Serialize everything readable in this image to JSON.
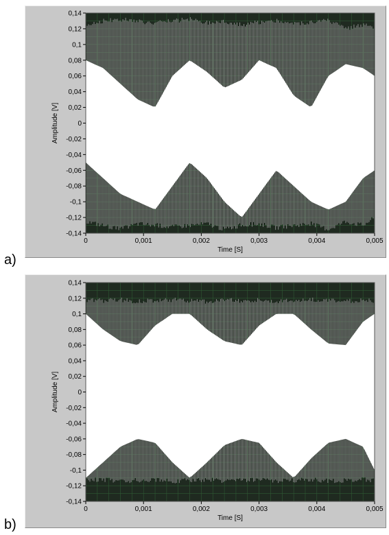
{
  "figure_labels": [
    "a)",
    "b)"
  ],
  "colors": {
    "plot_background": "#1f2a20",
    "grid": "#2f5a34",
    "signal": "#ffffff",
    "hatch": "#8a8a8a",
    "panel": "#c8c8c8"
  },
  "chart_data": [
    {
      "type": "area",
      "id": "a",
      "xlabel": "Time",
      "xunit": "[S]",
      "ylabel": "Amplitude",
      "yunit": "[V]",
      "xlim": [
        0,
        0.005
      ],
      "ylim": [
        -0.14,
        0.14
      ],
      "grid": true,
      "x_ticks": [
        0,
        0.001,
        0.002,
        0.003,
        0.004,
        0.005
      ],
      "x_tick_labels": [
        "0",
        "0,001",
        "0,002",
        "0,003",
        "0,004",
        "0,005"
      ],
      "y_ticks": [
        0.14,
        0.12,
        0.1,
        0.08,
        0.06,
        0.04,
        0.02,
        0,
        -0.02,
        -0.04,
        -0.06,
        -0.08,
        -0.1,
        -0.12,
        -0.14
      ],
      "y_tick_labels": [
        "0,14",
        "0,12",
        "0,1",
        "0,08",
        "0,06",
        "0,04",
        "0,02",
        "0",
        "-0,02",
        "-0,04",
        "-0,06",
        "-0,08",
        "-0,1",
        "-0,12",
        "-0,14"
      ],
      "envelope": {
        "x": [
          0,
          0.0003,
          0.0006,
          0.0009,
          0.0012,
          0.0015,
          0.0018,
          0.0021,
          0.0024,
          0.0027,
          0.003,
          0.0033,
          0.0036,
          0.0039,
          0.0042,
          0.0045,
          0.0048,
          0.005
        ],
        "outer_max": [
          0.125,
          0.13,
          0.132,
          0.13,
          0.127,
          0.13,
          0.132,
          0.128,
          0.13,
          0.125,
          0.128,
          0.13,
          0.126,
          0.128,
          0.13,
          0.12,
          0.125,
          0.12
        ],
        "outer_min": [
          -0.125,
          -0.13,
          -0.135,
          -0.128,
          -0.13,
          -0.132,
          -0.13,
          -0.128,
          -0.135,
          -0.13,
          -0.128,
          -0.133,
          -0.13,
          -0.128,
          -0.135,
          -0.125,
          -0.13,
          -0.12
        ],
        "inner_max": [
          0.08,
          0.07,
          0.05,
          0.03,
          0.02,
          0.06,
          0.08,
          0.065,
          0.045,
          0.055,
          0.08,
          0.07,
          0.035,
          0.02,
          0.06,
          0.075,
          0.07,
          0.06
        ],
        "inner_min": [
          -0.05,
          -0.07,
          -0.09,
          -0.1,
          -0.11,
          -0.08,
          -0.05,
          -0.07,
          -0.1,
          -0.12,
          -0.09,
          -0.06,
          -0.08,
          -0.1,
          -0.11,
          -0.1,
          -0.07,
          -0.06
        ]
      }
    },
    {
      "type": "area",
      "id": "b",
      "xlabel": "Time",
      "xunit": "[S]",
      "ylabel": "Amplitude",
      "yunit": "[V]",
      "xlim": [
        0,
        0.005
      ],
      "ylim": [
        -0.14,
        0.14
      ],
      "grid": true,
      "x_ticks": [
        0,
        0.001,
        0.002,
        0.003,
        0.004,
        0.005
      ],
      "x_tick_labels": [
        "0",
        "0,001",
        "0,002",
        "0,003",
        "0,004",
        "0,005"
      ],
      "y_ticks": [
        0.14,
        0.12,
        0.1,
        0.08,
        0.06,
        0.04,
        0.02,
        0,
        -0.02,
        -0.04,
        -0.06,
        -0.08,
        -0.1,
        -0.12,
        -0.14
      ],
      "y_tick_labels": [
        "0,14",
        "0,12",
        "0,1",
        "0,08",
        "0,06",
        "0,04",
        "0,02",
        "0",
        "-0,02",
        "-0,04",
        "-0,06",
        "-0,08",
        "-0,1",
        "-0,12",
        "-0,14"
      ],
      "envelope": {
        "x": [
          0,
          0.0003,
          0.0006,
          0.0009,
          0.0012,
          0.0015,
          0.0018,
          0.0021,
          0.0024,
          0.0027,
          0.003,
          0.0033,
          0.0036,
          0.0039,
          0.0042,
          0.0045,
          0.0048,
          0.005
        ],
        "outer_max": [
          0.118,
          0.117,
          0.118,
          0.116,
          0.117,
          0.118,
          0.117,
          0.116,
          0.118,
          0.117,
          0.118,
          0.116,
          0.117,
          0.118,
          0.117,
          0.116,
          0.118,
          0.117
        ],
        "outer_min": [
          -0.113,
          -0.112,
          -0.114,
          -0.113,
          -0.112,
          -0.114,
          -0.113,
          -0.112,
          -0.114,
          -0.113,
          -0.112,
          -0.114,
          -0.113,
          -0.112,
          -0.114,
          -0.113,
          -0.112,
          -0.113
        ],
        "inner_max": [
          0.1,
          0.08,
          0.065,
          0.06,
          0.085,
          0.1,
          0.1,
          0.08,
          0.065,
          0.06,
          0.085,
          0.1,
          0.1,
          0.08,
          0.062,
          0.06,
          0.09,
          0.1
        ],
        "inner_min": [
          -0.11,
          -0.09,
          -0.07,
          -0.06,
          -0.065,
          -0.09,
          -0.11,
          -0.09,
          -0.068,
          -0.06,
          -0.065,
          -0.09,
          -0.11,
          -0.085,
          -0.065,
          -0.06,
          -0.07,
          -0.1
        ]
      }
    }
  ]
}
